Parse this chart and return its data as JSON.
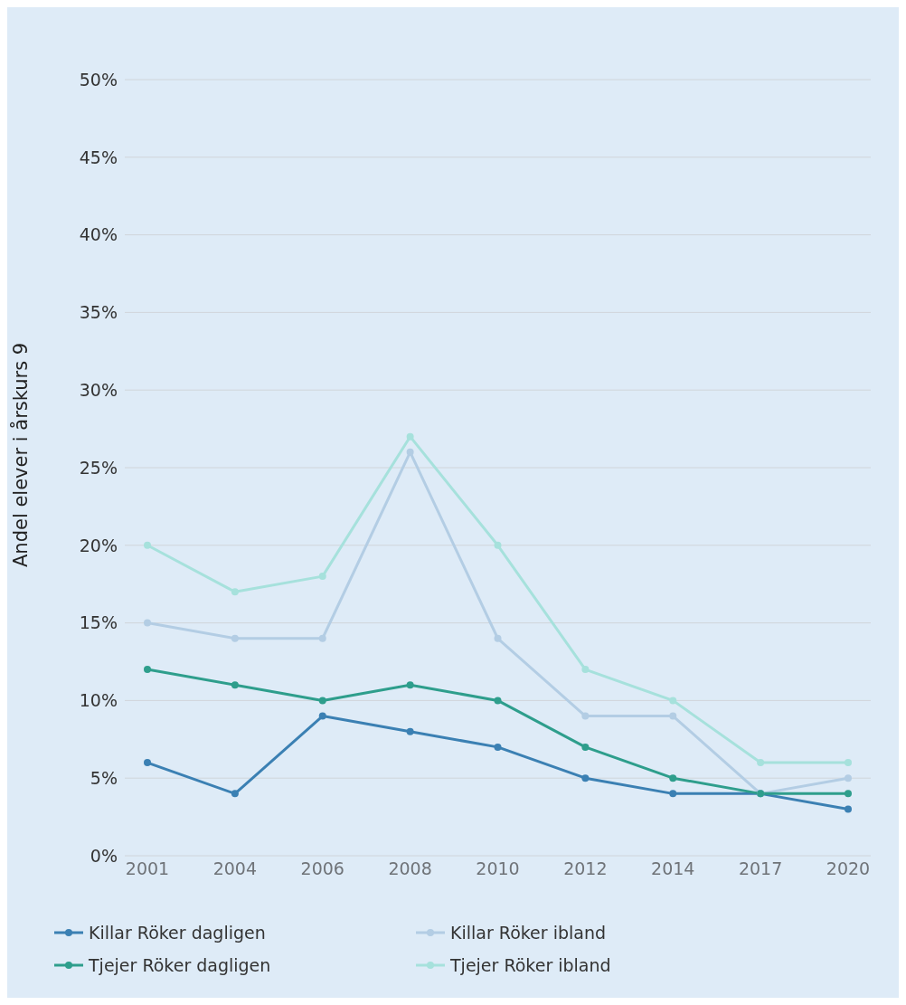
{
  "chart_data": {
    "type": "line",
    "ylabel": "Andel elever i årskurs 9",
    "categories": [
      "2001",
      "2004",
      "2006",
      "2008",
      "2010",
      "2012",
      "2014",
      "2017",
      "2020"
    ],
    "series": [
      {
        "name": "Killar Röker dagligen",
        "color": "#3b80b3",
        "values": [
          6,
          4,
          9,
          8,
          7,
          5,
          4,
          4,
          3
        ]
      },
      {
        "name": "Killar Röker ibland",
        "color": "#b3cde4",
        "values": [
          15,
          14,
          14,
          26,
          14,
          9,
          9,
          4,
          5
        ]
      },
      {
        "name": "Tjejer Röker dagligen",
        "color": "#2e9e8c",
        "values": [
          12,
          11,
          10,
          11,
          10,
          7,
          5,
          4,
          4
        ]
      },
      {
        "name": "Tjejer Röker ibland",
        "color": "#a6e1dc",
        "values": [
          20,
          17,
          18,
          27,
          20,
          12,
          10,
          6,
          6
        ]
      }
    ],
    "ylim": [
      0,
      50
    ],
    "yticks": [
      {
        "value": 0,
        "label": "0%"
      },
      {
        "value": 5,
        "label": "5%"
      },
      {
        "value": 10,
        "label": "10%"
      },
      {
        "value": 15,
        "label": "15%"
      },
      {
        "value": 20,
        "label": "20%"
      },
      {
        "value": 25,
        "label": "25%"
      },
      {
        "value": 30,
        "label": "30%"
      },
      {
        "value": 35,
        "label": "35%"
      },
      {
        "value": 40,
        "label": "40%"
      },
      {
        "value": 45,
        "label": "45%"
      },
      {
        "value": 50,
        "label": "50%"
      }
    ],
    "grid": "y",
    "legend": "bottom",
    "marker": "circle",
    "line_style": "solid"
  }
}
